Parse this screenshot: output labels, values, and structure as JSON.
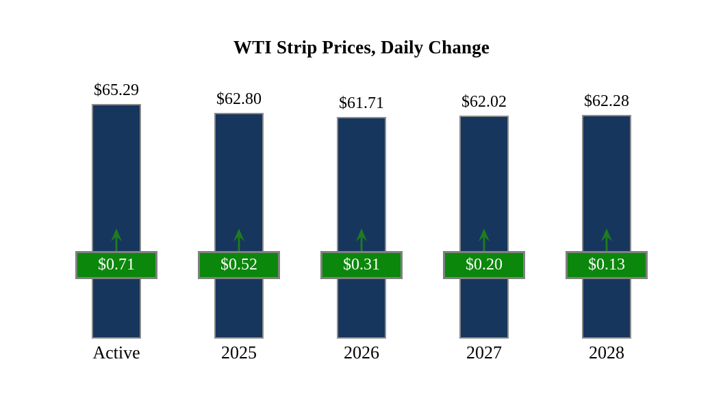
{
  "chart_data": {
    "type": "bar",
    "title": "WTI Strip Prices, Daily Change",
    "categories": [
      "Active",
      "2025",
      "2026",
      "2027",
      "2028"
    ],
    "values": [
      65.29,
      62.8,
      61.71,
      62.02,
      62.28
    ],
    "value_labels": [
      "$65.29",
      "$62.80",
      "$61.71",
      "$62.02",
      "$62.28"
    ],
    "daily_changes": [
      0.71,
      0.52,
      0.31,
      0.2,
      0.13
    ],
    "change_labels": [
      "$0.71",
      "$0.52",
      "$0.31",
      "$0.20",
      "$0.13"
    ],
    "change_direction": "up",
    "xlabel": "",
    "ylabel": "",
    "ylim": [
      0,
      66
    ],
    "grid": false,
    "legend": false,
    "colors": {
      "background": "#ffffff",
      "bar_fill": "#17365d",
      "bar_border": "#8c8c8c",
      "badge_fill": "#0b870b",
      "badge_border": "#808080",
      "badge_text": "#ffffff",
      "arrow": "#1e7d1e",
      "title_text": "#000000",
      "label_text": "#000000"
    }
  }
}
